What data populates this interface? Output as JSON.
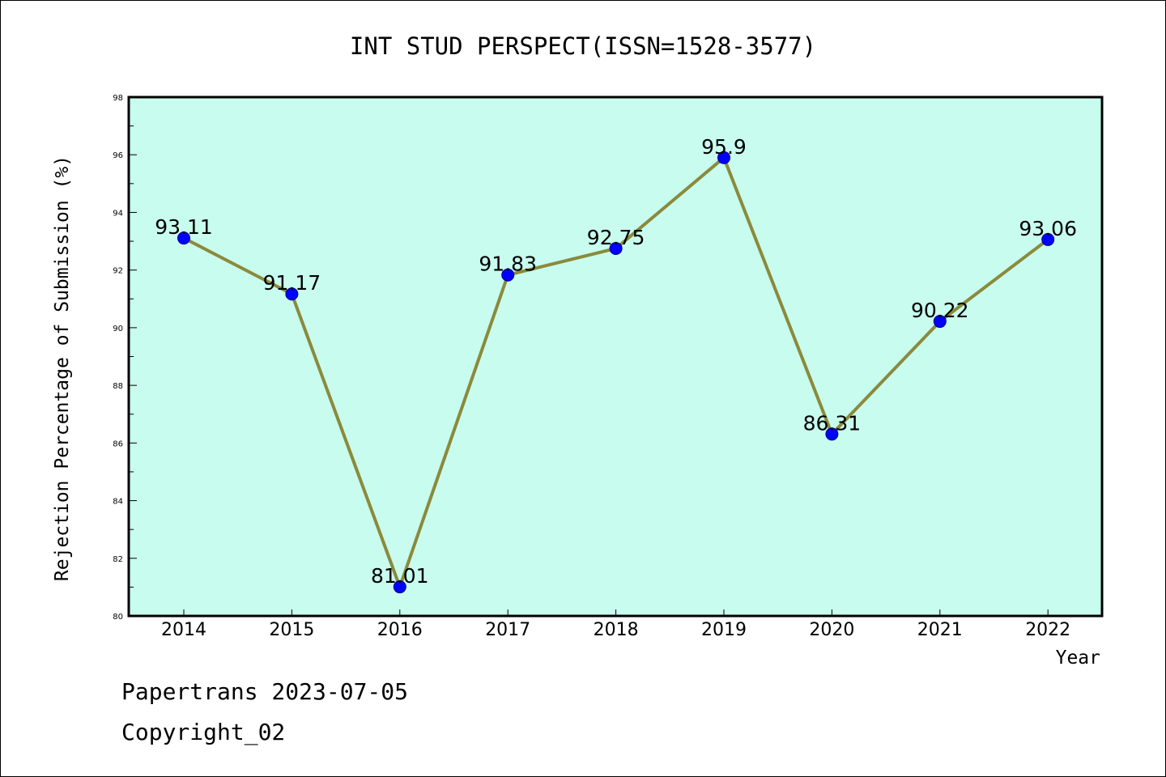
{
  "chart_data": {
    "type": "line",
    "title": "INT STUD PERSPECT(ISSN=1528-3577)",
    "xlabel": "Year",
    "ylabel": "Rejection Percentage of Submission (%)",
    "categories": [
      "2014",
      "2015",
      "2016",
      "2017",
      "2018",
      "2019",
      "2020",
      "2021",
      "2022"
    ],
    "values": [
      93.11,
      91.17,
      81.01,
      91.83,
      92.75,
      95.9,
      86.31,
      90.22,
      93.06
    ],
    "data_labels": [
      "93.11",
      "91.17",
      "81.01",
      "91.83",
      "92.75",
      "95.9",
      "86.31",
      "90.22",
      "93.06"
    ],
    "ylim": [
      80,
      98
    ],
    "yticks": [
      "80",
      "82",
      "84",
      "86",
      "88",
      "90",
      "92",
      "94",
      "96",
      "98"
    ],
    "grid": false,
    "legend": "none",
    "colors": {
      "plot_background": "#c8fcee",
      "line": "#8b8a3c",
      "marker": "#0000ff",
      "marker_edge": "#00008b"
    }
  },
  "footer": {
    "line1": "Papertrans 2023-07-05",
    "line2": "Copyright_02"
  }
}
